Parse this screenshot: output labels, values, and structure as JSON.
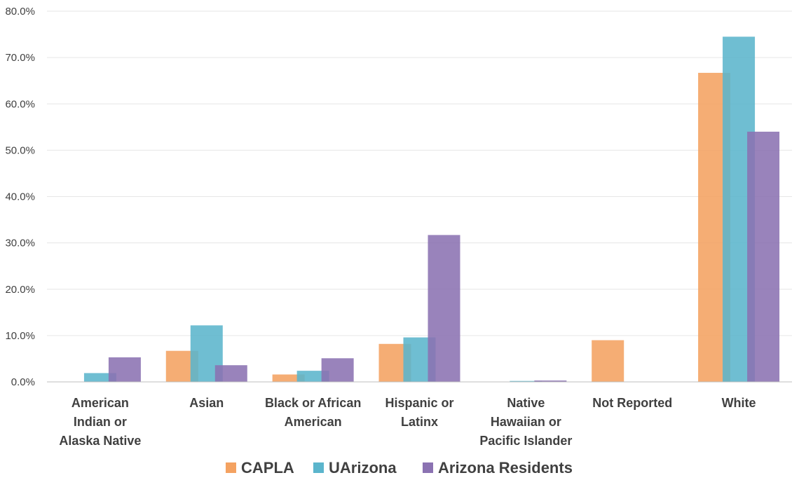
{
  "chart_data": {
    "type": "bar",
    "title": "",
    "xlabel": "",
    "ylabel": "",
    "ylim": [
      0,
      80
    ],
    "y_ticks": [
      "0.0%",
      "10.0%",
      "20.0%",
      "30.0%",
      "40.0%",
      "50.0%",
      "60.0%",
      "70.0%",
      "80.0%"
    ],
    "grid": true,
    "legend_position": "bottom",
    "categories": [
      [
        "American",
        "Indian or",
        "Alaska Native"
      ],
      [
        "Asian"
      ],
      [
        "Black or African",
        "American"
      ],
      [
        "Hispanic or",
        "Latinx"
      ],
      [
        "Native",
        "Hawaiian or",
        "Pacific Islander"
      ],
      [
        "Not Reported"
      ],
      [
        "White"
      ]
    ],
    "series": [
      {
        "name": "CAPLA",
        "color": "#F4A261",
        "values": [
          0.0,
          6.7,
          1.6,
          8.2,
          0.0,
          9.0,
          66.7
        ]
      },
      {
        "name": "UArizona",
        "color": "#5BB5CC",
        "values": [
          1.9,
          12.2,
          2.4,
          9.6,
          0.2,
          0.0,
          74.5
        ]
      },
      {
        "name": "Arizona Residents",
        "color": "#8B72B2",
        "values": [
          5.3,
          3.6,
          5.1,
          31.7,
          0.3,
          0.0,
          54.0
        ]
      }
    ]
  }
}
